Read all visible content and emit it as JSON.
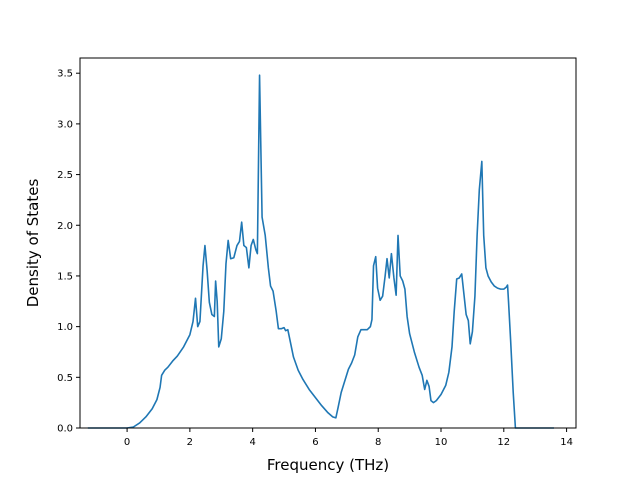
{
  "chart_data": {
    "type": "line",
    "title": "",
    "xlabel": "Frequency (THz)",
    "ylabel": "Density of States",
    "xlim": [
      -1.5,
      14.3
    ],
    "ylim": [
      0.0,
      3.65
    ],
    "xticks": [
      0,
      2,
      4,
      6,
      8,
      10,
      12,
      14
    ],
    "yticks": [
      0.0,
      0.5,
      1.0,
      1.5,
      2.0,
      2.5,
      3.0,
      3.5
    ],
    "xtick_labels": [
      "0",
      "2",
      "4",
      "6",
      "8",
      "10",
      "12",
      "14"
    ],
    "ytick_labels": [
      "0.0",
      "0.5",
      "1.0",
      "1.5",
      "2.0",
      "2.5",
      "3.0",
      "3.5"
    ],
    "grid": false,
    "legend": "none",
    "series": [
      {
        "color": "#1f77b4",
        "points": [
          [
            -1.25,
            0.0
          ],
          [
            0.0,
            0.0
          ],
          [
            0.2,
            0.01
          ],
          [
            0.4,
            0.05
          ],
          [
            0.6,
            0.11
          ],
          [
            0.8,
            0.19
          ],
          [
            0.95,
            0.28
          ],
          [
            1.05,
            0.4
          ],
          [
            1.1,
            0.52
          ],
          [
            1.2,
            0.57
          ],
          [
            1.3,
            0.6
          ],
          [
            1.45,
            0.66
          ],
          [
            1.6,
            0.71
          ],
          [
            1.8,
            0.8
          ],
          [
            2.0,
            0.92
          ],
          [
            2.1,
            1.05
          ],
          [
            2.18,
            1.28
          ],
          [
            2.25,
            1.0
          ],
          [
            2.32,
            1.05
          ],
          [
            2.42,
            1.6
          ],
          [
            2.48,
            1.8
          ],
          [
            2.55,
            1.55
          ],
          [
            2.62,
            1.24
          ],
          [
            2.7,
            1.12
          ],
          [
            2.78,
            1.1
          ],
          [
            2.82,
            1.45
          ],
          [
            2.87,
            1.25
          ],
          [
            2.92,
            0.8
          ],
          [
            3.0,
            0.88
          ],
          [
            3.08,
            1.15
          ],
          [
            3.15,
            1.62
          ],
          [
            3.22,
            1.85
          ],
          [
            3.3,
            1.67
          ],
          [
            3.4,
            1.68
          ],
          [
            3.5,
            1.8
          ],
          [
            3.58,
            1.84
          ],
          [
            3.65,
            2.03
          ],
          [
            3.72,
            1.8
          ],
          [
            3.8,
            1.78
          ],
          [
            3.88,
            1.58
          ],
          [
            3.95,
            1.8
          ],
          [
            4.02,
            1.86
          ],
          [
            4.1,
            1.76
          ],
          [
            4.15,
            1.72
          ],
          [
            4.22,
            3.48
          ],
          [
            4.3,
            2.08
          ],
          [
            4.4,
            1.9
          ],
          [
            4.5,
            1.58
          ],
          [
            4.57,
            1.4
          ],
          [
            4.65,
            1.35
          ],
          [
            4.75,
            1.15
          ],
          [
            4.82,
            0.98
          ],
          [
            4.92,
            0.98
          ],
          [
            5.0,
            0.99
          ],
          [
            5.05,
            0.96
          ],
          [
            5.12,
            0.97
          ],
          [
            5.2,
            0.85
          ],
          [
            5.3,
            0.7
          ],
          [
            5.45,
            0.57
          ],
          [
            5.6,
            0.48
          ],
          [
            5.8,
            0.38
          ],
          [
            6.0,
            0.3
          ],
          [
            6.2,
            0.22
          ],
          [
            6.4,
            0.15
          ],
          [
            6.55,
            0.11
          ],
          [
            6.65,
            0.1
          ],
          [
            6.72,
            0.2
          ],
          [
            6.82,
            0.35
          ],
          [
            6.95,
            0.48
          ],
          [
            7.05,
            0.58
          ],
          [
            7.15,
            0.64
          ],
          [
            7.25,
            0.72
          ],
          [
            7.35,
            0.9
          ],
          [
            7.45,
            0.97
          ],
          [
            7.55,
            0.97
          ],
          [
            7.65,
            0.97
          ],
          [
            7.75,
            1.0
          ],
          [
            7.8,
            1.07
          ],
          [
            7.85,
            1.6
          ],
          [
            7.92,
            1.69
          ],
          [
            7.98,
            1.38
          ],
          [
            8.06,
            1.26
          ],
          [
            8.14,
            1.3
          ],
          [
            8.22,
            1.5
          ],
          [
            8.28,
            1.67
          ],
          [
            8.35,
            1.48
          ],
          [
            8.42,
            1.72
          ],
          [
            8.5,
            1.48
          ],
          [
            8.57,
            1.31
          ],
          [
            8.63,
            1.9
          ],
          [
            8.7,
            1.5
          ],
          [
            8.78,
            1.45
          ],
          [
            8.85,
            1.37
          ],
          [
            8.92,
            1.1
          ],
          [
            9.0,
            0.93
          ],
          [
            9.15,
            0.75
          ],
          [
            9.3,
            0.6
          ],
          [
            9.4,
            0.52
          ],
          [
            9.48,
            0.38
          ],
          [
            9.55,
            0.47
          ],
          [
            9.62,
            0.41
          ],
          [
            9.68,
            0.27
          ],
          [
            9.76,
            0.25
          ],
          [
            9.85,
            0.27
          ],
          [
            10.0,
            0.33
          ],
          [
            10.15,
            0.42
          ],
          [
            10.25,
            0.55
          ],
          [
            10.35,
            0.8
          ],
          [
            10.42,
            1.15
          ],
          [
            10.5,
            1.47
          ],
          [
            10.58,
            1.48
          ],
          [
            10.66,
            1.52
          ],
          [
            10.73,
            1.32
          ],
          [
            10.8,
            1.12
          ],
          [
            10.87,
            1.06
          ],
          [
            10.93,
            0.83
          ],
          [
            11.0,
            0.95
          ],
          [
            11.08,
            1.3
          ],
          [
            11.15,
            1.9
          ],
          [
            11.22,
            2.35
          ],
          [
            11.3,
            2.63
          ],
          [
            11.36,
            1.9
          ],
          [
            11.43,
            1.58
          ],
          [
            11.5,
            1.5
          ],
          [
            11.6,
            1.44
          ],
          [
            11.7,
            1.4
          ],
          [
            11.8,
            1.38
          ],
          [
            11.9,
            1.37
          ],
          [
            12.0,
            1.37
          ],
          [
            12.08,
            1.39
          ],
          [
            12.12,
            1.41
          ],
          [
            12.15,
            1.25
          ],
          [
            12.22,
            0.85
          ],
          [
            12.3,
            0.35
          ],
          [
            12.37,
            0.0
          ],
          [
            13.6,
            0.0
          ]
        ]
      }
    ]
  }
}
